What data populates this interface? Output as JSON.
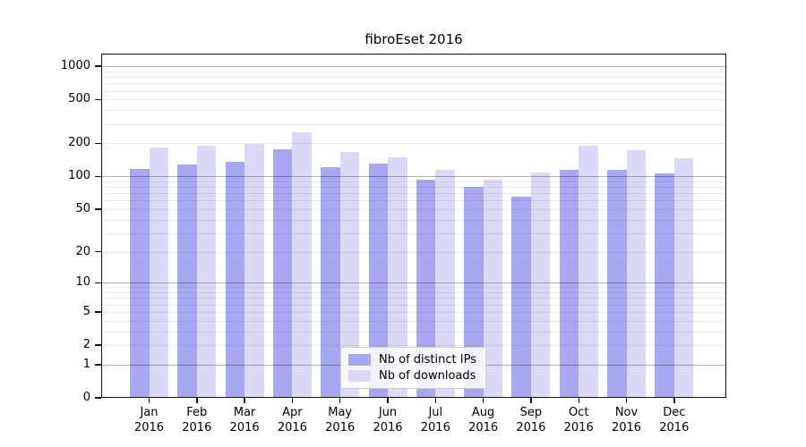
{
  "title": "fibroEset 2016",
  "chart_data": {
    "type": "bar",
    "title": "fibroEset 2016",
    "scale": "log1p",
    "grid": "on",
    "legend_position": "lower center",
    "categories": [
      "Jan",
      "Feb",
      "Mar",
      "Apr",
      "May",
      "Jun",
      "Jul",
      "Aug",
      "Sep",
      "Oct",
      "Nov",
      "Dec"
    ],
    "x_year": "2016",
    "series": [
      {
        "name": "Nb of distinct IPs",
        "color": "#a7a7f2",
        "values": [
          117,
          129,
          136,
          175,
          121,
          130,
          93,
          80,
          65,
          114,
          114,
          106
        ]
      },
      {
        "name": "Nb of downloads",
        "color": "#dadaf8",
        "values": [
          183,
          190,
          196,
          250,
          166,
          150,
          114,
          94,
          108,
          190,
          172,
          146
        ]
      }
    ],
    "yticks": [
      0,
      1,
      2,
      5,
      10,
      20,
      50,
      100,
      200,
      500,
      1000
    ],
    "ylim": [
      0,
      1300
    ],
    "xlabel": "",
    "ylabel": ""
  }
}
